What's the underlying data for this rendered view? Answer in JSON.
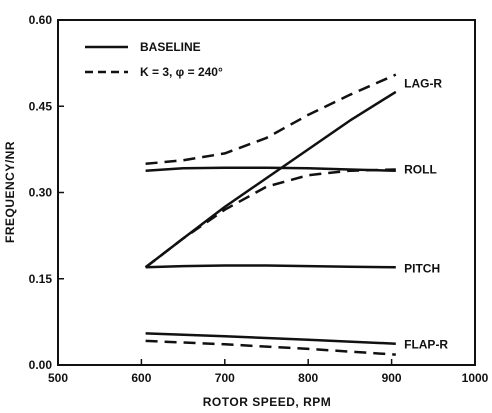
{
  "chart_data": {
    "type": "line",
    "xlabel": "ROTOR SPEED, RPM",
    "ylabel": "FREQUENCY/NR",
    "xlim": [
      500,
      1000
    ],
    "ylim": [
      0.0,
      0.6
    ],
    "xticks": [
      "500",
      "600",
      "700",
      "800",
      "900",
      "1000"
    ],
    "yticks": [
      "0.00",
      "0.15",
      "0.30",
      "0.45",
      "0.60"
    ],
    "legend": {
      "placement": "top-left",
      "entries": [
        {
          "label": "BASELINE",
          "style": "solid"
        },
        {
          "label": "K = 3, φ = 240°",
          "style": "dashed"
        }
      ]
    },
    "series": [
      {
        "mode": "LAG-R",
        "style": "solid",
        "x": [
          605,
          650,
          700,
          750,
          800,
          850,
          905
        ],
        "y": [
          0.17,
          0.22,
          0.275,
          0.325,
          0.375,
          0.425,
          0.475
        ]
      },
      {
        "mode": "LAG-R",
        "style": "dashed",
        "x": [
          605,
          650,
          700,
          750,
          800,
          850,
          905
        ],
        "y": [
          0.35,
          0.356,
          0.368,
          0.395,
          0.435,
          0.47,
          0.505
        ]
      },
      {
        "mode": "ROLL",
        "style": "solid",
        "x": [
          605,
          650,
          700,
          750,
          800,
          850,
          905
        ],
        "y": [
          0.338,
          0.342,
          0.343,
          0.343,
          0.342,
          0.34,
          0.338
        ]
      },
      {
        "mode": "ROLL",
        "style": "dashed",
        "x": [
          605,
          650,
          700,
          750,
          800,
          850,
          905
        ],
        "y": [
          0.17,
          0.22,
          0.27,
          0.31,
          0.33,
          0.338,
          0.34
        ]
      },
      {
        "mode": "PITCH",
        "style": "solid",
        "x": [
          605,
          650,
          700,
          750,
          800,
          850,
          905
        ],
        "y": [
          0.17,
          0.172,
          0.173,
          0.173,
          0.172,
          0.171,
          0.17
        ]
      },
      {
        "mode": "FLAP-R",
        "style": "solid",
        "x": [
          605,
          700,
          800,
          905
        ],
        "y": [
          0.055,
          0.05,
          0.044,
          0.037
        ]
      },
      {
        "mode": "FLAP-R",
        "style": "dashed",
        "x": [
          605,
          700,
          800,
          905
        ],
        "y": [
          0.042,
          0.036,
          0.028,
          0.018
        ]
      }
    ],
    "annotations": [
      {
        "text": "LAG-R",
        "x": 915,
        "y": 0.49
      },
      {
        "text": "ROLL",
        "x": 915,
        "y": 0.34
      },
      {
        "text": "PITCH",
        "x": 915,
        "y": 0.168
      },
      {
        "text": "FLAP-R",
        "x": 915,
        "y": 0.036
      }
    ],
    "grid": false
  }
}
